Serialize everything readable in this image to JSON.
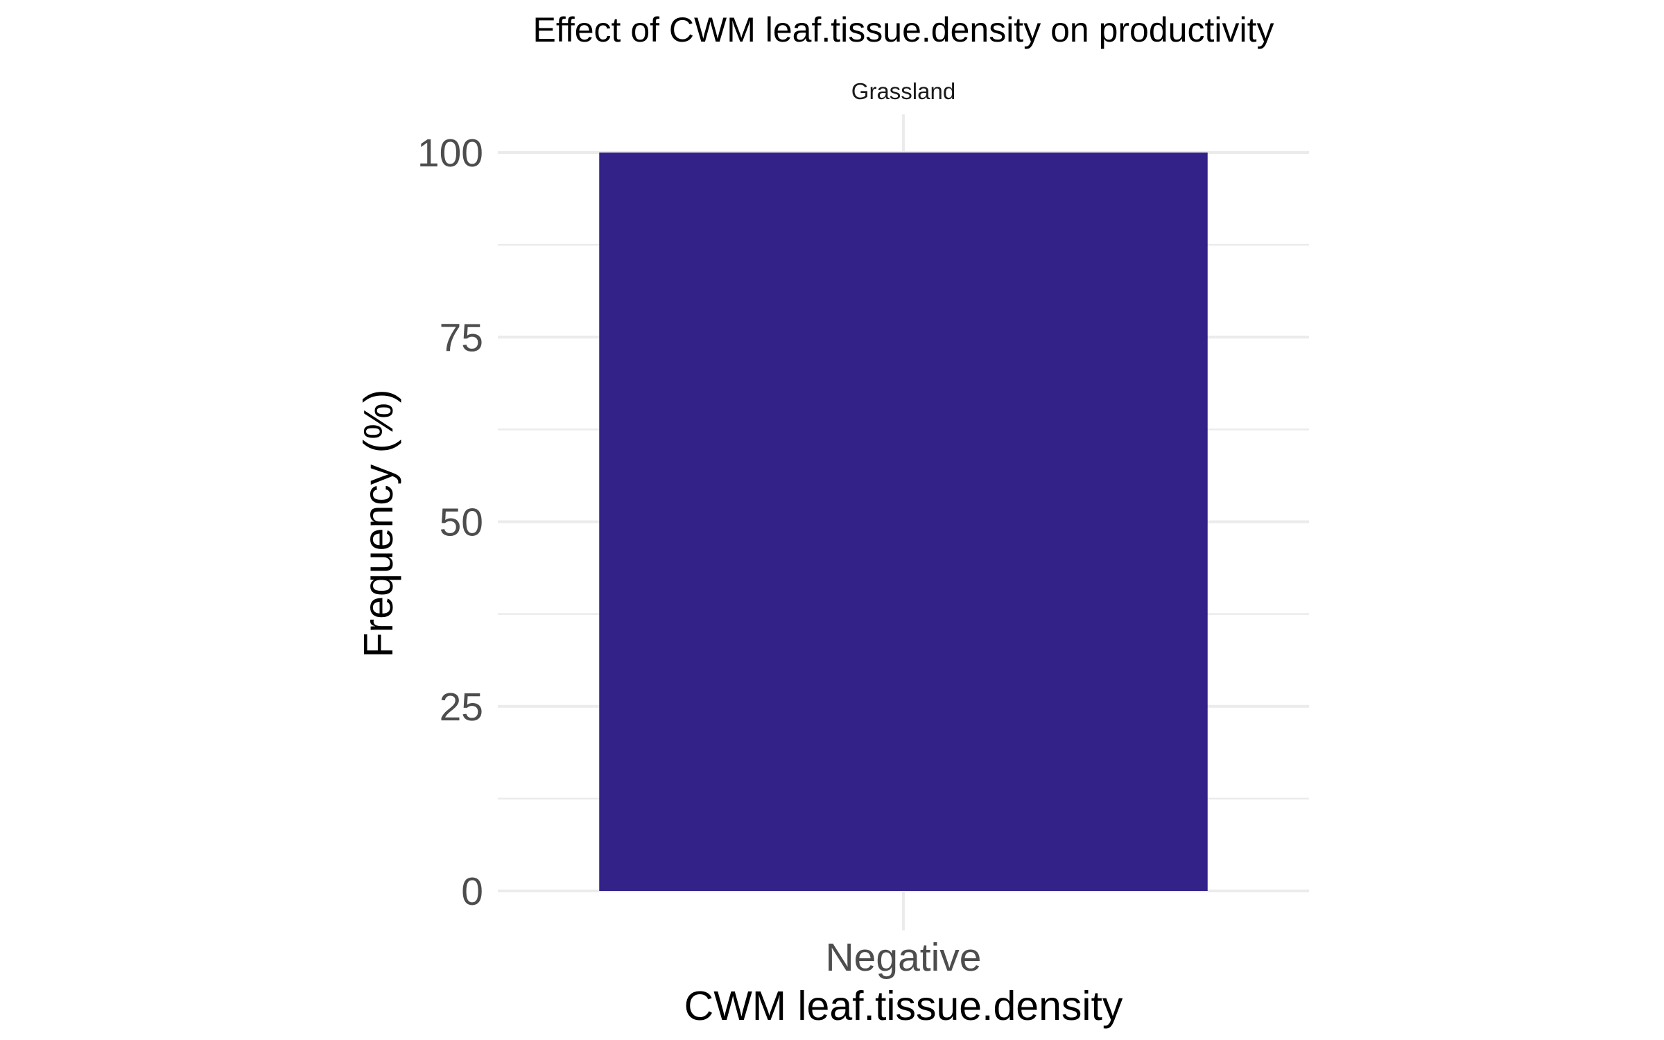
{
  "chart_data": {
    "type": "bar",
    "title": "Effect of CWM leaf.tissue.density on productivity",
    "facet_label": "Grassland",
    "categories": [
      "Negative"
    ],
    "values": [
      100
    ],
    "xlabel": "CWM leaf.tissue.density",
    "ylabel": "Frequency (%)",
    "ylim": [
      0,
      100
    ],
    "y_ticks": [
      0,
      25,
      50,
      75,
      100
    ],
    "grid": true,
    "legend": "none",
    "colors": {
      "bar": "#332288",
      "grid": "#ebebeb",
      "tick_text": "#4d4d4d"
    }
  }
}
